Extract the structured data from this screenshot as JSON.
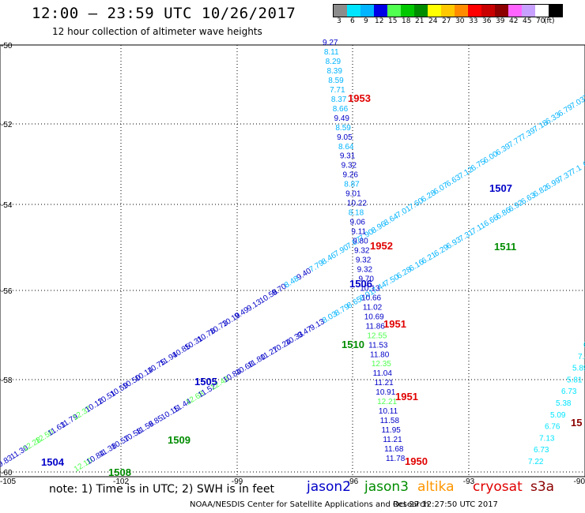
{
  "header": {
    "title": "12:00 – 23:59 UTC 10/26/2017",
    "subtitle": "12 hour collection of altimeter wave heights"
  },
  "legend": {
    "unit": "(ft)",
    "bins": [
      {
        "label": "3",
        "color": "#8c8c8c"
      },
      {
        "label": "6",
        "color": "#00e5ff"
      },
      {
        "label": "9",
        "color": "#00b4ff"
      },
      {
        "label": "12",
        "color": "#0000e6"
      },
      {
        "label": "15",
        "color": "#50ff50"
      },
      {
        "label": "18",
        "color": "#00c800"
      },
      {
        "label": "21",
        "color": "#008c00"
      },
      {
        "label": "24",
        "color": "#ffff00"
      },
      {
        "label": "27",
        "color": "#ffc800"
      },
      {
        "label": "30",
        "color": "#ff8c00"
      },
      {
        "label": "33",
        "color": "#ff0000"
      },
      {
        "label": "36",
        "color": "#c80000"
      },
      {
        "label": "39",
        "color": "#8c0000"
      },
      {
        "label": "42",
        "color": "#ff64ff"
      },
      {
        "label": "45",
        "color": "#c8a0ff"
      },
      {
        "label": "70",
        "color": "#ffffff"
      },
      {
        "label": "",
        "color": "#000000"
      }
    ]
  },
  "map": {
    "lat_labels": [
      "-50",
      "-52",
      "-54",
      "-56",
      "-58",
      "-60"
    ],
    "lon_labels": [
      "-105",
      "-102",
      "-99",
      "-96",
      "-93",
      "-90"
    ]
  },
  "tracks": [
    {
      "id": "t1",
      "color": "#0000c8",
      "points": [
        {
          "v": "9.83",
          "c": "#0000c8"
        },
        {
          "v": "11.30",
          "c": "#0000c8"
        },
        {
          "v": "12.28",
          "c": "#50ff50"
        },
        {
          "v": "12.50",
          "c": "#50ff50"
        },
        {
          "v": "11.63",
          "c": "#0000c8"
        },
        {
          "v": "11.79",
          "c": "#0000c8"
        },
        {
          "v": "12.37",
          "c": "#50ff50"
        },
        {
          "v": "10.12",
          "c": "#0000c8"
        },
        {
          "v": "10.51",
          "c": "#0000c8"
        },
        {
          "v": "10.59",
          "c": "#0000c8"
        },
        {
          "v": "10.50",
          "c": "#0000c8"
        },
        {
          "v": "10.14",
          "c": "#0000c8"
        },
        {
          "v": "10.75",
          "c": "#0000c8"
        },
        {
          "v": "11.94",
          "c": "#0000c8"
        },
        {
          "v": "10.85",
          "c": "#0000c8"
        },
        {
          "v": "10.31",
          "c": "#0000c8"
        },
        {
          "v": "10.78",
          "c": "#0000c8"
        },
        {
          "v": "10.73",
          "c": "#0000c8"
        },
        {
          "v": "10.19",
          "c": "#0000c8"
        },
        {
          "v": "9.49",
          "c": "#0000c8"
        },
        {
          "v": "9.13",
          "c": "#0000c8"
        },
        {
          "v": "10.56",
          "c": "#0000c8"
        },
        {
          "v": "9.70",
          "c": "#0000c8"
        },
        {
          "v": "8.48",
          "c": "#00b4ff"
        },
        {
          "v": "9.40",
          "c": "#0000c8"
        },
        {
          "v": "7.79",
          "c": "#00b4ff"
        },
        {
          "v": "8.46",
          "c": "#00b4ff"
        },
        {
          "v": "7.90",
          "c": "#00b4ff"
        },
        {
          "v": "7.67",
          "c": "#00b4ff"
        },
        {
          "v": "7.90",
          "c": "#00b4ff"
        },
        {
          "v": "8.96",
          "c": "#00b4ff"
        },
        {
          "v": "8.64",
          "c": "#00b4ff"
        },
        {
          "v": "7.01",
          "c": "#00b4ff"
        },
        {
          "v": "7.60",
          "c": "#00b4ff"
        },
        {
          "v": "6.28",
          "c": "#00b4ff"
        },
        {
          "v": "6.07",
          "c": "#00b4ff"
        },
        {
          "v": "6.63",
          "c": "#00b4ff"
        },
        {
          "v": "7.12",
          "c": "#00b4ff"
        },
        {
          "v": "6.75",
          "c": "#00b4ff"
        },
        {
          "v": "6.00",
          "c": "#00b4ff"
        },
        {
          "v": "6.39",
          "c": "#00b4ff"
        },
        {
          "v": "7.77",
          "c": "#00b4ff"
        },
        {
          "v": "7.39",
          "c": "#00b4ff"
        },
        {
          "v": "7.18",
          "c": "#00b4ff"
        },
        {
          "v": "6.33",
          "c": "#00b4ff"
        },
        {
          "v": "6.79",
          "c": "#00b4ff"
        },
        {
          "v": "7.03",
          "c": "#00b4ff"
        },
        {
          "v": "7.5",
          "c": "#00b4ff"
        }
      ],
      "from": [
        0,
        592
      ],
      "to": [
        740,
        128
      ]
    },
    {
      "id": "t2",
      "color": "#0000c8",
      "points": [
        {
          "v": "12.10",
          "c": "#50ff50"
        },
        {
          "v": "10.84",
          "c": "#0000c8"
        },
        {
          "v": "11.38",
          "c": "#0000c8"
        },
        {
          "v": "10.57",
          "c": "#0000c8"
        },
        {
          "v": "10.58",
          "c": "#0000c8"
        },
        {
          "v": "11.56",
          "c": "#0000c8"
        },
        {
          "v": "9.85",
          "c": "#0000c8"
        },
        {
          "v": "10.15",
          "c": "#0000c8"
        },
        {
          "v": "11.44",
          "c": "#0000c8"
        },
        {
          "v": "12.68",
          "c": "#50ff50"
        },
        {
          "v": "11.52",
          "c": "#0000c8"
        },
        {
          "v": "12.42",
          "c": "#50ff50"
        },
        {
          "v": "10.84",
          "c": "#0000c8"
        },
        {
          "v": "10.68",
          "c": "#0000c8"
        },
        {
          "v": "11.80",
          "c": "#0000c8"
        },
        {
          "v": "11.27",
          "c": "#0000c8"
        },
        {
          "v": "10.24",
          "c": "#0000c8"
        },
        {
          "v": "10.33",
          "c": "#0000c8"
        },
        {
          "v": "9.47",
          "c": "#0000c8"
        },
        {
          "v": "9.13",
          "c": "#0000c8"
        },
        {
          "v": "8.03",
          "c": "#00b4ff"
        },
        {
          "v": "8.79",
          "c": "#00b4ff"
        },
        {
          "v": "8.65",
          "c": "#00b4ff"
        },
        {
          "v": "8.01",
          "c": "#00b4ff"
        },
        {
          "v": "7.44",
          "c": "#00b4ff"
        },
        {
          "v": "7.50",
          "c": "#00b4ff"
        },
        {
          "v": "6.28",
          "c": "#00b4ff"
        },
        {
          "v": "6.16",
          "c": "#00b4ff"
        },
        {
          "v": "6.21",
          "c": "#00b4ff"
        },
        {
          "v": "6.29",
          "c": "#00b4ff"
        },
        {
          "v": "6.93",
          "c": "#00b4ff"
        },
        {
          "v": "7.31",
          "c": "#00b4ff"
        },
        {
          "v": "7.11",
          "c": "#00b4ff"
        },
        {
          "v": "6.66",
          "c": "#00b4ff"
        },
        {
          "v": "6.86",
          "c": "#00b4ff"
        },
        {
          "v": "6.92",
          "c": "#00b4ff"
        },
        {
          "v": "6.63",
          "c": "#00b4ff"
        },
        {
          "v": "6.82",
          "c": "#00b4ff"
        },
        {
          "v": "6.99",
          "c": "#00b4ff"
        },
        {
          "v": "7.37",
          "c": "#00b4ff"
        },
        {
          "v": "7.1",
          "c": "#00b4ff"
        },
        {
          "v": "6.9",
          "c": "#00b4ff"
        }
      ],
      "from": [
        96,
        598
      ],
      "to": [
        740,
        212
      ]
    },
    {
      "id": "t3",
      "color": "#0000c8",
      "points": [
        {
          "v": "9.27",
          "c": "#0000c8"
        },
        {
          "v": "8.11",
          "c": "#00b4ff"
        },
        {
          "v": "8.29",
          "c": "#00b4ff"
        },
        {
          "v": "8.39",
          "c": "#00b4ff"
        },
        {
          "v": "8.59",
          "c": "#00b4ff"
        },
        {
          "v": "7.71",
          "c": "#00b4ff"
        },
        {
          "v": "8.37",
          "c": "#00b4ff"
        },
        {
          "v": "8.66",
          "c": "#00b4ff"
        },
        {
          "v": "9.49",
          "c": "#0000c8"
        },
        {
          "v": "8.59",
          "c": "#00b4ff"
        },
        {
          "v": "9.05",
          "c": "#0000c8"
        },
        {
          "v": "8.64",
          "c": "#00b4ff"
        },
        {
          "v": "9.31",
          "c": "#0000c8"
        },
        {
          "v": "9.32",
          "c": "#0000c8"
        },
        {
          "v": "9.26",
          "c": "#0000c8"
        },
        {
          "v": "8.87",
          "c": "#00b4ff"
        },
        {
          "v": "9.01",
          "c": "#0000c8"
        },
        {
          "v": "10.22",
          "c": "#0000c8"
        },
        {
          "v": "8.18",
          "c": "#00b4ff"
        },
        {
          "v": "9.06",
          "c": "#0000c8"
        },
        {
          "v": "9.11",
          "c": "#0000c8"
        },
        {
          "v": "9.80",
          "c": "#0000c8"
        },
        {
          "v": "9.32",
          "c": "#0000c8"
        },
        {
          "v": "9.32",
          "c": "#0000c8"
        },
        {
          "v": "9.32",
          "c": "#0000c8"
        },
        {
          "v": "9.70",
          "c": "#0000c8"
        },
        {
          "v": "10.13",
          "c": "#0000c8"
        },
        {
          "v": "10.66",
          "c": "#0000c8"
        },
        {
          "v": "11.02",
          "c": "#0000c8"
        },
        {
          "v": "10.69",
          "c": "#0000c8"
        },
        {
          "v": "11.86",
          "c": "#0000c8"
        },
        {
          "v": "12.55",
          "c": "#50ff50"
        },
        {
          "v": "11.53",
          "c": "#0000c8"
        },
        {
          "v": "11.80",
          "c": "#0000c8"
        },
        {
          "v": "12.35",
          "c": "#50ff50"
        },
        {
          "v": "11.04",
          "c": "#0000c8"
        },
        {
          "v": "11.21",
          "c": "#0000c8"
        },
        {
          "v": "10.91",
          "c": "#0000c8"
        },
        {
          "v": "12.21",
          "c": "#50ff50"
        },
        {
          "v": "10.11",
          "c": "#0000c8"
        },
        {
          "v": "11.58",
          "c": "#0000c8"
        },
        {
          "v": "11.95",
          "c": "#0000c8"
        },
        {
          "v": "11.21",
          "c": "#0000c8"
        },
        {
          "v": "11.68",
          "c": "#0000c8"
        },
        {
          "v": "11.78",
          "c": "#0000c8"
        }
      ],
      "from": [
        408,
        57
      ],
      "to": [
        488,
        584
      ]
    },
    {
      "id": "t4",
      "color": "#00b4ff",
      "points": [
        {
          "v": "7.22",
          "c": "#00e5ff"
        },
        {
          "v": "6.73",
          "c": "#00e5ff"
        },
        {
          "v": "7.13",
          "c": "#00e5ff"
        },
        {
          "v": "6.76",
          "c": "#00e5ff"
        },
        {
          "v": "5.09",
          "c": "#00e5ff"
        },
        {
          "v": "5.38",
          "c": "#00e5ff"
        },
        {
          "v": "6.73",
          "c": "#00e5ff"
        },
        {
          "v": "5.81",
          "c": "#00e5ff"
        },
        {
          "v": "5.89",
          "c": "#00e5ff"
        },
        {
          "v": "7.4",
          "c": "#00e5ff"
        },
        {
          "v": "6",
          "c": "#00e5ff"
        }
      ],
      "from": [
        668,
        588
      ],
      "to": [
        738,
        440
      ]
    }
  ],
  "pass_labels": [
    {
      "text": "1953",
      "color": "#e00000"
    },
    {
      "text": "1507",
      "color": "#0000c8"
    },
    {
      "text": "1952",
      "color": "#e00000"
    },
    {
      "text": "1511",
      "color": "#008c00"
    },
    {
      "text": "1506",
      "color": "#0000c8"
    },
    {
      "text": "1951",
      "color": "#e00000"
    },
    {
      "text": "1510",
      "color": "#008c00"
    },
    {
      "text": "1505",
      "color": "#0000c8"
    },
    {
      "text": "1951",
      "color": "#e00000"
    },
    {
      "text": "1509",
      "color": "#008c00"
    },
    {
      "text": "1504",
      "color": "#0000c8"
    },
    {
      "text": "1508",
      "color": "#008c00"
    },
    {
      "text": "1950",
      "color": "#e00000"
    },
    {
      "text": "15",
      "color": "#8c0000"
    }
  ],
  "footer": {
    "note": "note: 1) Time is in UTC; 2) SWH is in feet",
    "satellites": [
      {
        "name": "jason2",
        "color": "#0000c8"
      },
      {
        "name": "jason3",
        "color": "#008c00"
      },
      {
        "name": "altika",
        "color": "#ff9600"
      },
      {
        "name": "cryosat",
        "color": "#e00000"
      },
      {
        "name": "s3a",
        "color": "#8c0000"
      }
    ],
    "credit": "NOAA/NESDIS Center for Satellite Applications and Research",
    "timestamp": "Oct 27 12:27:50 UTC 2017"
  }
}
